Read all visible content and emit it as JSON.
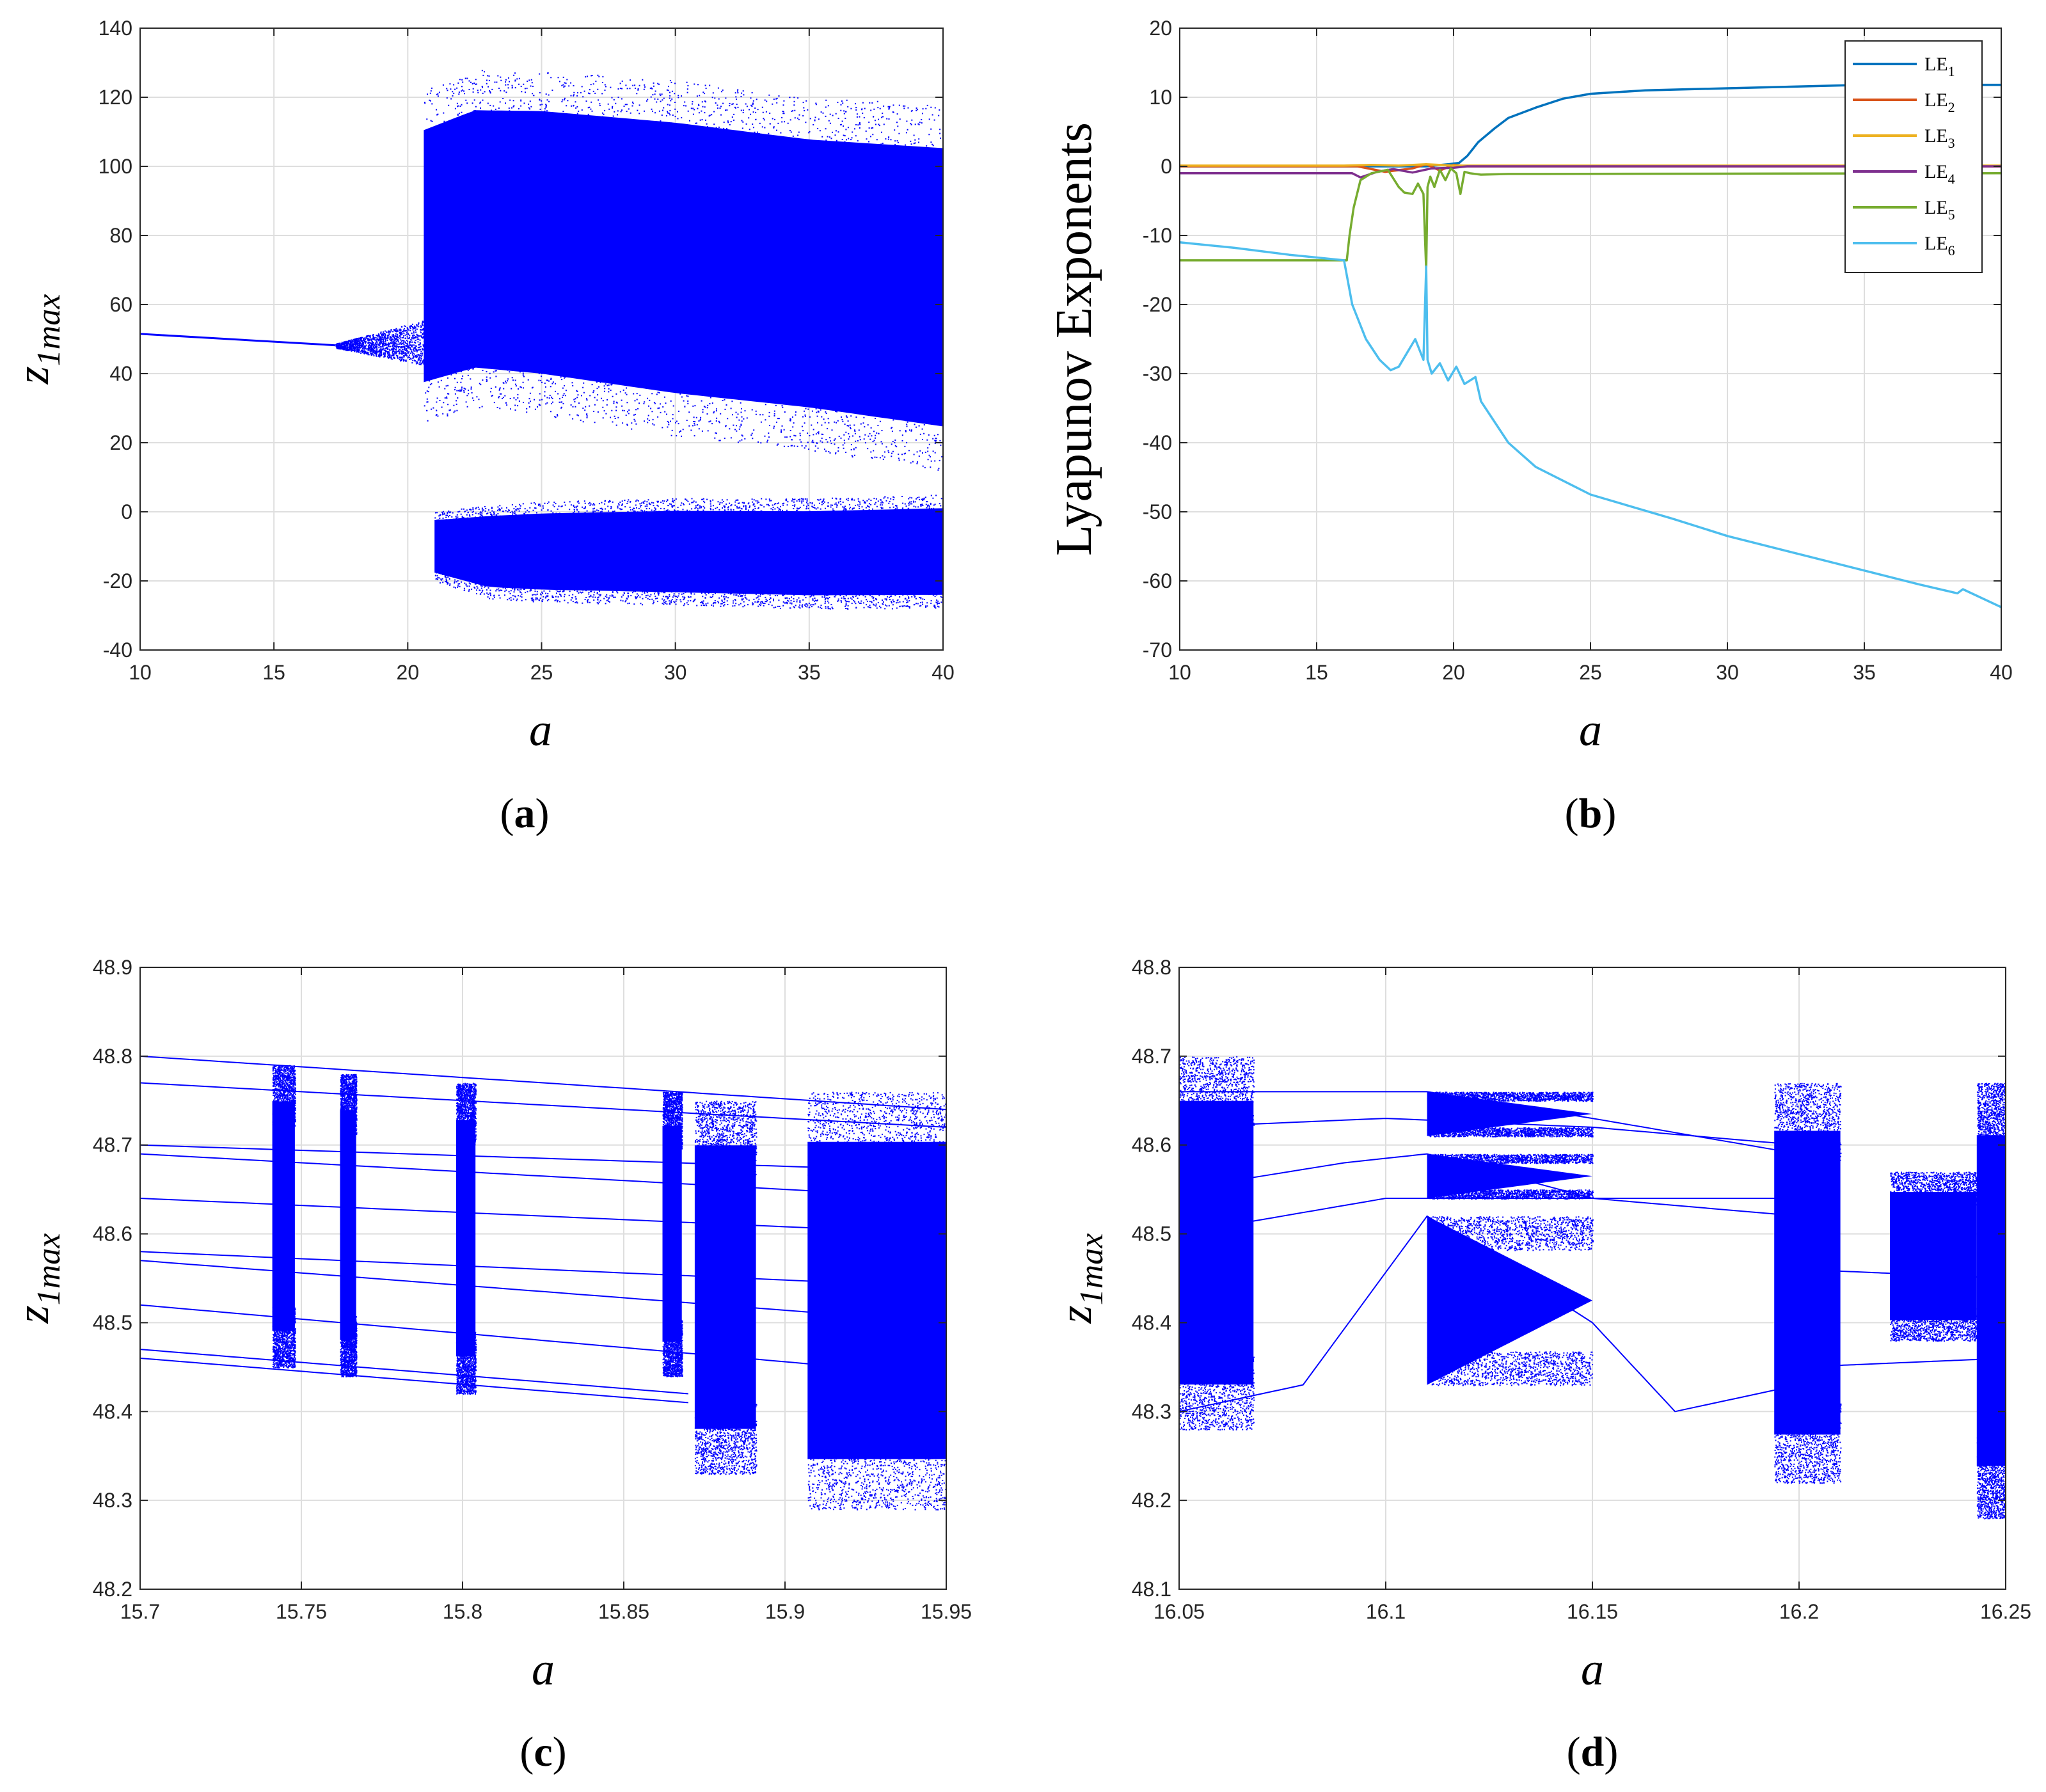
{
  "figure": {
    "panel_labels": [
      "a",
      "b",
      "c",
      "d"
    ]
  },
  "chart_data": [
    {
      "id": "a",
      "type": "scatter",
      "subtype": "bifurcation-diagram",
      "panel_label": "a",
      "xlabel": "a",
      "ylabel_main": "z",
      "ylabel_sub": "1max",
      "xlim": [
        10,
        40
      ],
      "ylim": [
        -40,
        140
      ],
      "xticks": [
        10,
        15,
        20,
        25,
        30,
        35,
        40
      ],
      "yticks": [
        -40,
        -20,
        0,
        20,
        40,
        60,
        80,
        100,
        120,
        140
      ],
      "grid": true,
      "color": "#0000ff",
      "bands": [
        {
          "x": [
            10,
            17.3
          ],
          "ylow": [
            51.5,
            48.2
          ],
          "yhigh": [
            51.5,
            48.2
          ],
          "density": "line"
        },
        {
          "x": [
            17.3,
            20.6
          ],
          "ylow": [
            47.5,
            42.5
          ],
          "yhigh": [
            48.8,
            55.5
          ],
          "density": "sparse"
        },
        {
          "x": [
            20.6,
            22.5,
            25,
            30,
            35,
            40
          ],
          "ylow": [
            26,
            30,
            28,
            22,
            18,
            12
          ],
          "yhigh": [
            122,
            128,
            128,
            125,
            120,
            118
          ],
          "density": "dense"
        },
        {
          "x": [
            21,
            23,
            25,
            30,
            35,
            40
          ],
          "ylow": [
            -20,
            -25,
            -26,
            -27,
            -28,
            -28
          ],
          "yhigh": [
            0,
            2,
            3,
            4,
            4,
            5
          ],
          "density": "dense"
        }
      ]
    },
    {
      "id": "b",
      "type": "line",
      "panel_label": "b",
      "xlabel": "a",
      "ylabel": "Lyapunov Exponents",
      "xlim": [
        10,
        40
      ],
      "ylim": [
        -70,
        20
      ],
      "xticks": [
        10,
        15,
        20,
        25,
        30,
        35,
        40
      ],
      "yticks": [
        -70,
        -60,
        -50,
        -40,
        -30,
        -20,
        -10,
        0,
        10,
        20
      ],
      "grid": true,
      "legend_position": "top-right",
      "series": [
        {
          "name": "LE",
          "sub": "1",
          "color": "#0072bd",
          "x": [
            10,
            15,
            19,
            19.8,
            20.2,
            20.5,
            20.9,
            21.5,
            22,
            23,
            24,
            25,
            27,
            30,
            35,
            40
          ],
          "y": [
            0,
            0,
            0,
            0.3,
            0.5,
            1.5,
            3.5,
            5.5,
            7,
            8.5,
            9.8,
            10.5,
            11,
            11.3,
            11.8,
            11.8
          ]
        },
        {
          "name": "LE",
          "sub": "2",
          "color": "#d95319",
          "x": [
            10,
            16.5,
            17.5,
            18.5,
            19,
            19.5,
            20,
            20.5,
            40
          ],
          "y": [
            0,
            0,
            -0.8,
            -0.3,
            0.3,
            -0.6,
            0.2,
            0,
            0
          ]
        },
        {
          "name": "LE",
          "sub": "3",
          "color": "#edb120",
          "x": [
            10,
            16,
            17,
            18,
            19,
            20,
            21,
            40
          ],
          "y": [
            0.1,
            0.1,
            0.2,
            0.1,
            0.3,
            0.1,
            0.1,
            0.1
          ]
        },
        {
          "name": "LE",
          "sub": "4",
          "color": "#7e2f8e",
          "x": [
            10,
            16.3,
            16.6,
            17.2,
            17.8,
            18.5,
            19.2,
            20,
            20.5,
            40
          ],
          "y": [
            -1,
            -1,
            -1.6,
            -0.8,
            -0.4,
            -0.9,
            -0.3,
            -0.2,
            0,
            0
          ]
        },
        {
          "name": "LE",
          "sub": "5",
          "color": "#77ac30",
          "x": [
            10,
            16.1,
            16.2,
            16.35,
            16.6,
            17,
            17.6,
            18,
            18.2,
            18.5,
            18.7,
            18.9,
            19.0,
            19.05,
            19.15,
            19.3,
            19.5,
            19.7,
            19.9,
            20.1,
            20.25,
            20.4,
            20.6,
            21,
            22,
            40
          ],
          "y": [
            -13.6,
            -13.6,
            -10,
            -6,
            -2,
            -1,
            -0.5,
            -3,
            -3.8,
            -4,
            -2.5,
            -4,
            -15,
            -3,
            -1.5,
            -3,
            -0.5,
            -2,
            -0.3,
            -1,
            -4,
            -0.8,
            -1,
            -1.2,
            -1.1,
            -1.0
          ]
        },
        {
          "name": "LE",
          "sub": "6",
          "color": "#4dbeee",
          "x": [
            10,
            12,
            14,
            16,
            16.3,
            16.8,
            17.3,
            17.7,
            18.0,
            18.3,
            18.6,
            18.9,
            19.0,
            19.05,
            19.2,
            19.5,
            19.8,
            20.1,
            20.4,
            20.8,
            21,
            22,
            23,
            25,
            28,
            30,
            33,
            35,
            37,
            38.4,
            38.6,
            40
          ],
          "y": [
            -11,
            -11.8,
            -12.8,
            -13.6,
            -20,
            -25,
            -28,
            -29.5,
            -29,
            -27,
            -25,
            -28,
            -14.5,
            -28,
            -30,
            -28.5,
            -31,
            -29,
            -31.5,
            -30.5,
            -34,
            -40,
            -43.5,
            -47.5,
            -51,
            -53.5,
            -56.5,
            -58.5,
            -60.5,
            -61.8,
            -61.2,
            -63.8
          ]
        }
      ]
    },
    {
      "id": "c",
      "type": "scatter",
      "subtype": "bifurcation-diagram",
      "panel_label": "c",
      "xlabel": "a",
      "ylabel_main": "z",
      "ylabel_sub": "1max",
      "xlim": [
        15.7,
        15.95
      ],
      "ylim": [
        48.2,
        48.9
      ],
      "xticks": [
        15.7,
        15.75,
        15.8,
        15.85,
        15.9,
        15.95
      ],
      "xtick_labels": [
        "15.7",
        "15.75",
        "15.8",
        "15.85",
        "15.9",
        "15.95"
      ],
      "yticks": [
        48.2,
        48.3,
        48.4,
        48.5,
        48.6,
        48.7,
        48.8,
        48.9
      ],
      "ytick_labels": [
        "48.2",
        "48.3",
        "48.4",
        "48.5",
        "48.6",
        "48.7",
        "48.8",
        "48.9"
      ],
      "grid": true,
      "color": "#0000ff",
      "branches": [
        {
          "x": [
            15.7,
            15.95
          ],
          "y": [
            48.8,
            48.74
          ]
        },
        {
          "x": [
            15.7,
            15.95
          ],
          "y": [
            48.77,
            48.72
          ]
        },
        {
          "x": [
            15.7,
            15.95
          ],
          "y": [
            48.7,
            48.67
          ]
        },
        {
          "x": [
            15.7,
            15.95
          ],
          "y": [
            48.69,
            48.64
          ]
        },
        {
          "x": [
            15.7,
            15.95
          ],
          "y": [
            48.64,
            48.6
          ]
        },
        {
          "x": [
            15.7,
            15.95
          ],
          "y": [
            48.58,
            48.54
          ]
        },
        {
          "x": [
            15.7,
            15.95
          ],
          "y": [
            48.57,
            48.5
          ]
        },
        {
          "x": [
            15.7,
            15.95
          ],
          "y": [
            48.52,
            48.44
          ]
        },
        {
          "x": [
            15.7,
            15.87
          ],
          "y": [
            48.47,
            48.42
          ]
        },
        {
          "x": [
            15.7,
            15.87
          ],
          "y": [
            48.46,
            48.41
          ]
        }
      ],
      "bands": [
        {
          "x": [
            15.741,
            15.748
          ],
          "y": [
            48.45,
            48.79
          ],
          "density": "dense"
        },
        {
          "x": [
            15.762,
            15.767
          ],
          "y": [
            48.44,
            48.78
          ],
          "density": "dense"
        },
        {
          "x": [
            15.798,
            15.804
          ],
          "y": [
            48.42,
            48.77
          ],
          "density": "dense"
        },
        {
          "x": [
            15.862,
            15.868
          ],
          "y": [
            48.44,
            48.76
          ],
          "density": "dense"
        },
        {
          "x": [
            15.872,
            15.891
          ],
          "y": [
            48.33,
            48.75
          ],
          "density": "dense"
        },
        {
          "x": [
            15.907,
            15.95
          ],
          "y": [
            48.29,
            48.76
          ],
          "density": "dense"
        }
      ]
    },
    {
      "id": "d",
      "type": "scatter",
      "subtype": "bifurcation-diagram",
      "panel_label": "d",
      "xlabel": "a",
      "ylabel_main": "z",
      "ylabel_sub": "1max",
      "xlim": [
        16.05,
        16.25
      ],
      "ylim": [
        48.1,
        48.8
      ],
      "xticks": [
        16.05,
        16.1,
        16.15,
        16.2,
        16.25
      ],
      "xtick_labels": [
        "16.05",
        "16.1",
        "16.15",
        "16.2",
        "16.25"
      ],
      "yticks": [
        48.1,
        48.2,
        48.3,
        48.4,
        48.5,
        48.6,
        48.7,
        48.8
      ],
      "ytick_labels": [
        "48.1",
        "48.2",
        "48.3",
        "48.4",
        "48.5",
        "48.6",
        "48.7",
        "48.8"
      ],
      "grid": true,
      "color": "#0000ff",
      "branches": [
        {
          "x": [
            16.05,
            16.08,
            16.11,
            16.15,
            16.2
          ],
          "y": [
            48.66,
            48.66,
            48.66,
            48.63,
            48.59
          ]
        },
        {
          "x": [
            16.05,
            16.09,
            16.11,
            16.15,
            16.2
          ],
          "y": [
            48.55,
            48.58,
            48.59,
            48.54,
            48.54
          ]
        },
        {
          "x": [
            16.05,
            16.08,
            16.11,
            16.15,
            16.17,
            16.2
          ],
          "y": [
            48.3,
            48.33,
            48.52,
            48.4,
            48.3,
            48.33
          ]
        },
        {
          "x": [
            16.05,
            16.1,
            16.15,
            16.2
          ],
          "y": [
            48.62,
            48.63,
            48.62,
            48.6
          ]
        },
        {
          "x": [
            16.05,
            16.1,
            16.15,
            16.2
          ],
          "y": [
            48.5,
            48.54,
            48.54,
            48.52
          ]
        },
        {
          "x": [
            16.2,
            16.25
          ],
          "y": [
            48.46,
            48.45
          ]
        },
        {
          "x": [
            16.2,
            16.25
          ],
          "y": [
            48.35,
            48.36
          ]
        }
      ],
      "bands": [
        {
          "x": [
            16.05,
            16.068
          ],
          "y": [
            48.28,
            48.7
          ],
          "density": "dense"
        },
        {
          "x": [
            16.11,
            16.15
          ],
          "y": [
            48.61,
            48.66
          ],
          "density": "wedge"
        },
        {
          "x": [
            16.11,
            16.15
          ],
          "y": [
            48.54,
            48.59
          ],
          "density": "wedge"
        },
        {
          "x": [
            16.11,
            16.15
          ],
          "y": [
            48.33,
            48.52
          ],
          "density": "wedge"
        },
        {
          "x": [
            16.194,
            16.21
          ],
          "y": [
            48.22,
            48.67
          ],
          "density": "dense"
        },
        {
          "x": [
            16.222,
            16.243
          ],
          "y": [
            48.38,
            48.57
          ],
          "density": "dense"
        },
        {
          "x": [
            16.243,
            16.25
          ],
          "y": [
            48.18,
            48.67
          ],
          "density": "dense"
        }
      ]
    }
  ]
}
